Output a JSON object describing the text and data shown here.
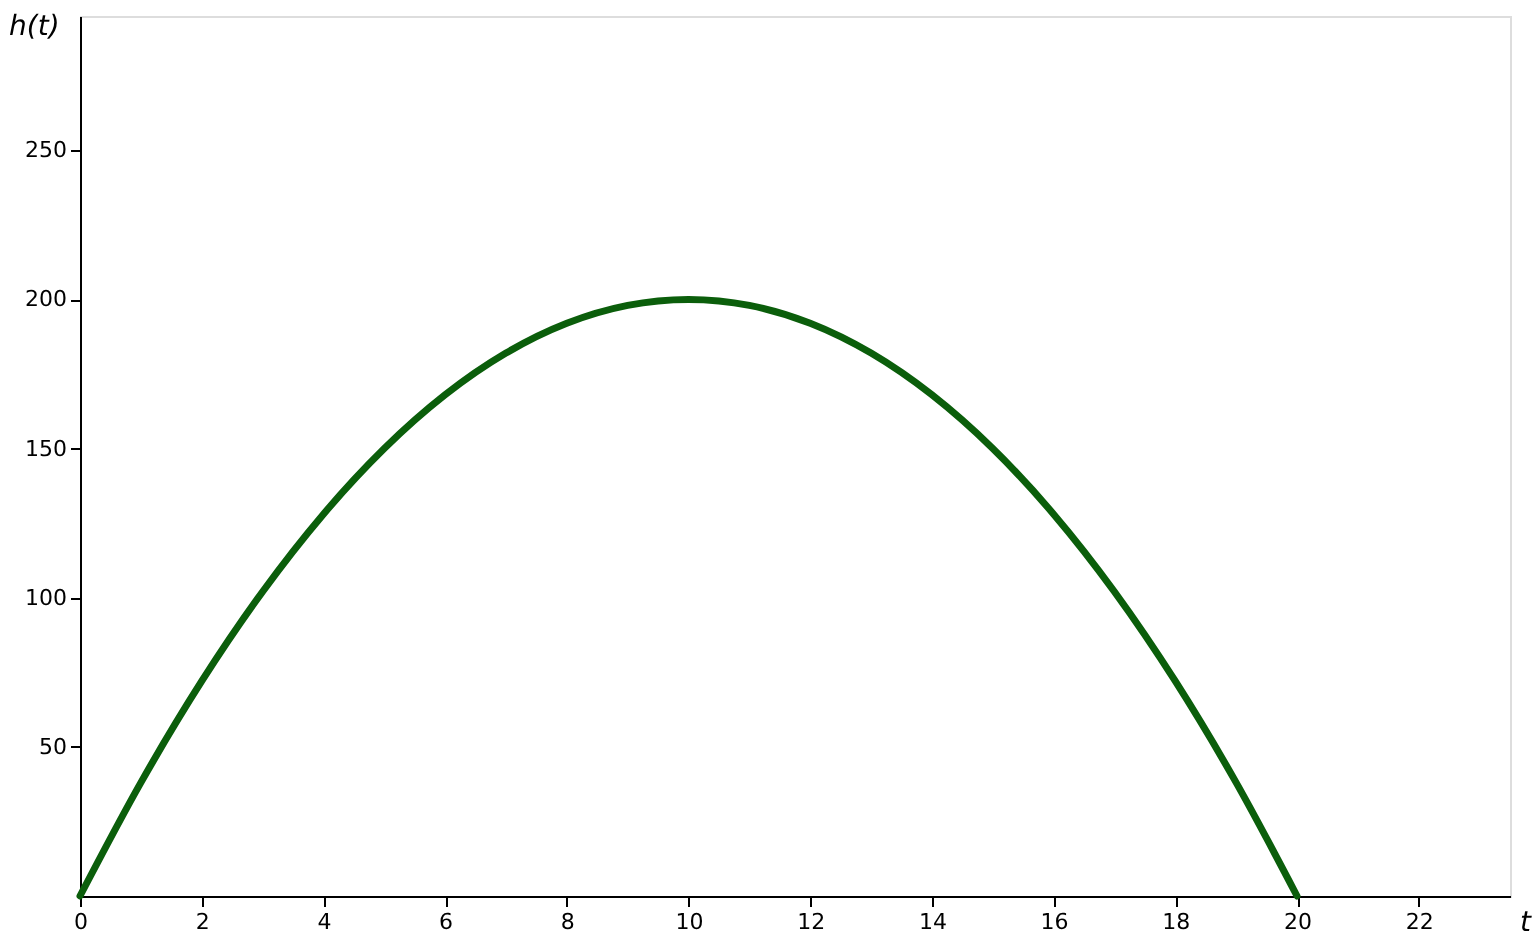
{
  "chart_data": {
    "type": "line",
    "xlabel": "t",
    "ylabel": "h(t)",
    "x": [
      0,
      1,
      2,
      3,
      4,
      5,
      6,
      7,
      8,
      9,
      10,
      11,
      12,
      13,
      14,
      15,
      16,
      17,
      18,
      19,
      20
    ],
    "series": [
      {
        "color": "#0b5e0b",
        "values": [
          0,
          38,
          72,
          102,
          128,
          150,
          168,
          182,
          192,
          198,
          200,
          198,
          192,
          182,
          168,
          150,
          128,
          102,
          72,
          38,
          0
        ]
      }
    ],
    "xlim": [
      0,
      23.5
    ],
    "xticks": [
      0,
      2,
      4,
      6,
      8,
      10,
      12,
      14,
      16,
      18,
      20,
      22
    ],
    "ylim": [
      0,
      295
    ],
    "yticks": [
      50,
      100,
      150,
      200,
      250
    ],
    "grid": false,
    "marker": "none",
    "line_style": "solid"
  }
}
